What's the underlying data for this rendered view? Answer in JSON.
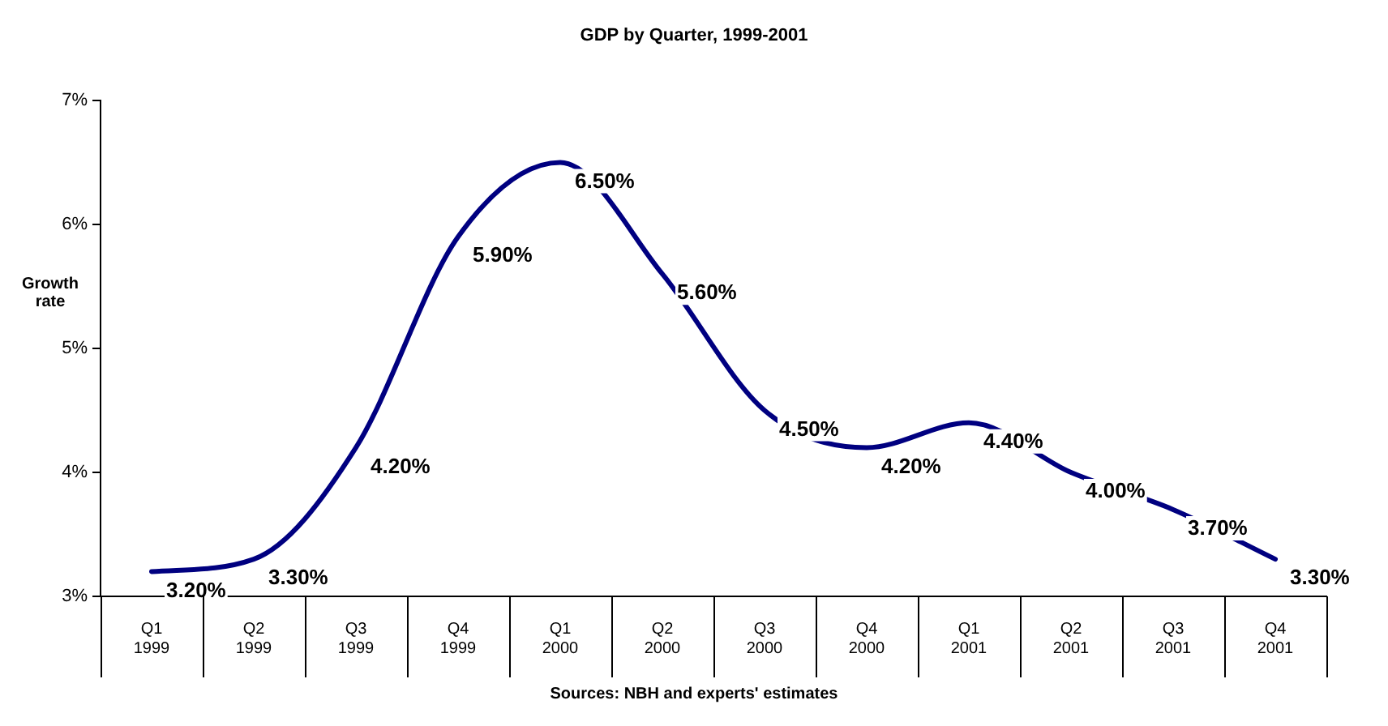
{
  "chart_data": {
    "type": "line",
    "title": "GDP by Quarter,  1999-2001",
    "ylabel": "Growth rate",
    "categories": [
      "Q1 1999",
      "Q2 1999",
      "Q3 1999",
      "Q4 1999",
      "Q1 2000",
      "Q2 2000",
      "Q3 2000",
      "Q4 2000",
      "Q1 2001",
      "Q2 2001",
      "Q3 2001",
      "Q4 2001"
    ],
    "series": [
      {
        "color": "#000080",
        "values": [
          3.2,
          3.3,
          4.2,
          5.9,
          6.5,
          5.6,
          4.5,
          4.2,
          4.4,
          4.0,
          3.7,
          3.3
        ],
        "value_labels": [
          "3.20%",
          "3.30%",
          "4.20%",
          "5.90%",
          "6.50%",
          "5.60%",
          "4.50%",
          "4.20%",
          "4.40%",
          "4.00%",
          "3.70%",
          "3.30%"
        ]
      }
    ],
    "ylim": [
      3,
      7
    ],
    "yticks": [
      {
        "value": 3,
        "label": "3%"
      },
      {
        "value": 4,
        "label": "4%"
      },
      {
        "value": 5,
        "label": "5%"
      },
      {
        "value": 6,
        "label": "6%"
      },
      {
        "value": 7,
        "label": "7%"
      }
    ],
    "grid": false,
    "legend": false,
    "marker": "none",
    "line_style": "solid",
    "annotations": [
      "Sources: NBH and experts' estimates"
    ]
  }
}
